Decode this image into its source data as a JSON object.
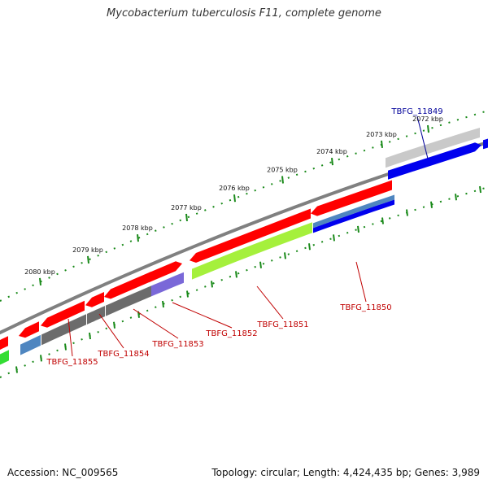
{
  "title": "Mycobacterium tuberculosis F11, complete genome",
  "footer": {
    "accession": "Accession: NC_009565",
    "summary": "Topology: circular; Length: 4,424,435 bp; Genes: 3,989"
  },
  "scale": {
    "unit": "kbp",
    "labels": [
      "2072 kbp",
      "2073 kbp",
      "2074 kbp",
      "2075 kbp",
      "2076 kbp",
      "2077 kbp",
      "2078 kbp",
      "2079 kbp",
      "2080 kbp"
    ]
  },
  "genes": [
    {
      "name": "TBFG_11849",
      "color": "#00009a"
    },
    {
      "name": "TBFG_11850",
      "color": "#c00000"
    },
    {
      "name": "TBFG_11851",
      "color": "#c00000"
    },
    {
      "name": "TBFG_11852",
      "color": "#c00000"
    },
    {
      "name": "TBFG_11853",
      "color": "#c00000"
    },
    {
      "name": "TBFG_11854",
      "color": "#c00000"
    },
    {
      "name": "TBFG_11855",
      "color": "#c00000"
    }
  ],
  "colors": {
    "backbone": "#808080",
    "ticks": "#1a8a1a",
    "cds": "#ff0000",
    "blue_track": "#0000ee",
    "steelblue_track": "#4f86c0",
    "grey_track": "#6c6c6c",
    "green_track": "#a5f03c",
    "purple_track": "#7a68d8",
    "bright_green": "#33dd33",
    "light_grey_track": "#c9c9c9"
  }
}
